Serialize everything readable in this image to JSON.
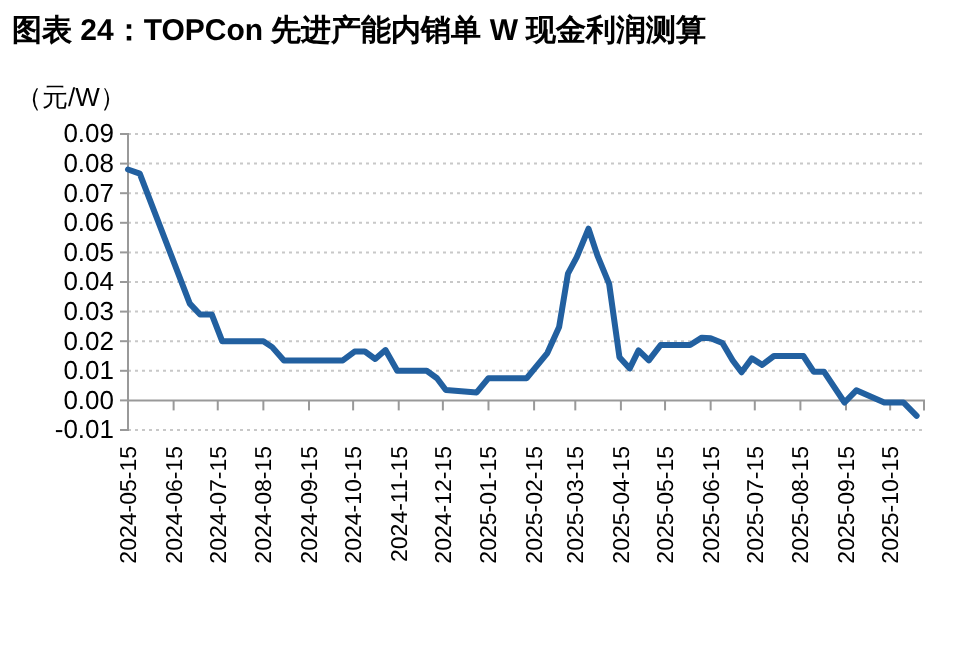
{
  "chart_data": {
    "type": "line",
    "title": "图表 24：TOPCon 先进产能内销单 W 现金利润测算",
    "ylabel": "（元/W）",
    "x": [
      "2024-05-15",
      "2024-05-23",
      "2024-06-26",
      "2024-07-03",
      "2024-07-11",
      "2024-07-18",
      "2024-08-15",
      "2024-08-21",
      "2024-08-29",
      "2024-10-08",
      "2024-10-16",
      "2024-10-23",
      "2024-10-30",
      "2024-11-06",
      "2024-11-14",
      "2024-12-04",
      "2024-12-11",
      "2024-12-17",
      "2025-01-07",
      "2025-01-15",
      "2025-02-10",
      "2025-02-24",
      "2025-03-04",
      "2025-03-10",
      "2025-03-16",
      "2025-03-24",
      "2025-03-30",
      "2025-04-07",
      "2025-04-14",
      "2025-04-21",
      "2025-04-27",
      "2025-05-04",
      "2025-05-12",
      "2025-06-01",
      "2025-06-09",
      "2025-06-15",
      "2025-06-23",
      "2025-06-30",
      "2025-07-06",
      "2025-07-13",
      "2025-07-20",
      "2025-07-28",
      "2025-08-17",
      "2025-08-24",
      "2025-08-31",
      "2025-09-14",
      "2025-09-22",
      "2025-10-11",
      "2025-10-24",
      "2025-11-02"
    ],
    "series": [
      {
        "color": "#2260a0",
        "values": [
          0.078,
          0.0766,
          0.0327,
          0.029,
          0.029,
          0.02,
          0.02,
          0.018,
          0.0135,
          0.0135,
          0.0165,
          0.0165,
          0.014,
          0.017,
          0.01,
          0.01,
          0.0075,
          0.0035,
          0.0027,
          0.0075,
          0.0075,
          0.016,
          0.0248,
          0.0428,
          0.0484,
          0.058,
          0.049,
          0.0394,
          0.0146,
          0.0108,
          0.0169,
          0.0135,
          0.0187,
          0.0187,
          0.0212,
          0.021,
          0.0194,
          0.0135,
          0.0095,
          0.0142,
          0.012,
          0.015,
          0.015,
          0.0097,
          0.0097,
          -0.0007,
          0.0034,
          -0.0007,
          -0.0007,
          -0.0052
        ]
      }
    ],
    "xlim": [
      "2024-05-15",
      "2025-11-07"
    ],
    "xticks": [
      "2024-05-15",
      "2024-06-15",
      "2024-07-15",
      "2024-08-15",
      "2024-09-15",
      "2024-10-15",
      "2024-11-15",
      "2024-12-15",
      "2025-01-15",
      "2025-02-15",
      "2025-03-15",
      "2025-04-15",
      "2025-05-15",
      "2025-06-15",
      "2025-07-15",
      "2025-08-15",
      "2025-09-15",
      "2025-10-15"
    ],
    "ylim": [
      -0.01,
      0.09
    ],
    "yticks": [
      -0.01,
      {
        "value": 0,
        "label": "0.00"
      },
      0.01,
      0.02,
      0.03,
      0.04,
      0.05,
      0.06,
      0.07,
      0.08,
      0.09
    ],
    "grid": "y",
    "marker": "none",
    "line_style": "solid"
  }
}
